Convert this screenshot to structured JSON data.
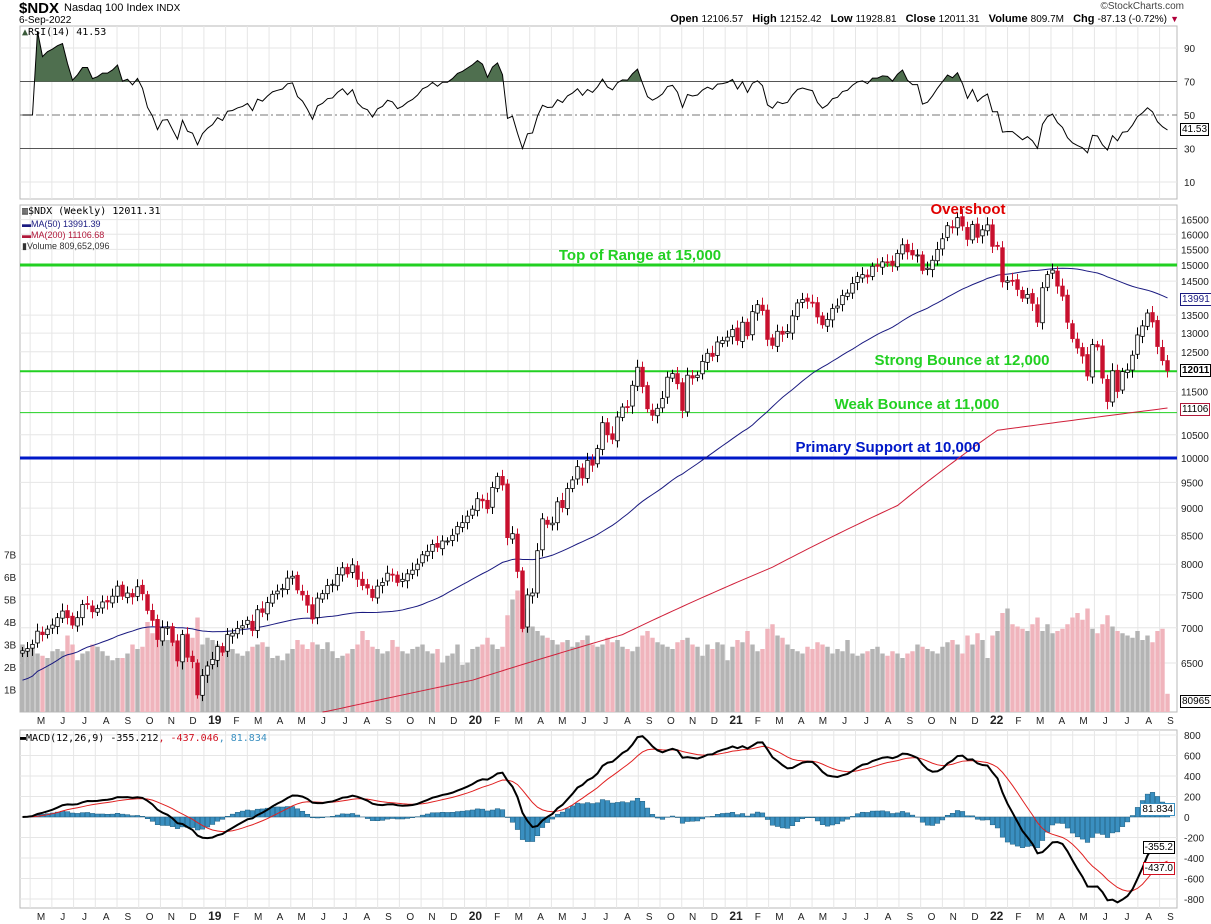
{
  "header": {
    "symbol": "$NDX",
    "name": "Nasdaq 100 Index",
    "exchange": "INDX",
    "date": "6-Sep-2022",
    "copyright": "©StockCharts.com",
    "stats": {
      "open_label": "Open",
      "open": "12106.57",
      "high_label": "High",
      "high": "12152.42",
      "low_label": "Low",
      "low": "11928.81",
      "close_label": "Close",
      "close": "12011.31",
      "volume_label": "Volume",
      "volume": "809.7M",
      "chg_label": "Chg",
      "chg": "-87.13 (-0.72%)"
    }
  },
  "legends": {
    "rsi": "RSI(14) 41.53",
    "price": "$NDX (Weekly) 12011.31",
    "ma50": "MA(50) 13991.39",
    "ma200": "MA(200) 11106.68",
    "volume": "Volume 809,652,096",
    "macd_main": "MACD(12,26,9) -355.212",
    "macd_signal": ", -437.046",
    "macd_hist": ", 81.834"
  },
  "value_tags": {
    "rsi": "41.53",
    "ma50": "13991",
    "close": "12011",
    "ma200": "11106",
    "volume": "80965",
    "macd_hist": "81.834",
    "macd": "-355.2",
    "macd_signal": "-437.0"
  },
  "annotations": [
    {
      "text": "Overshoot",
      "color": "#e00000"
    },
    {
      "text": "Top of Range at 15,000",
      "color": "#22d022",
      "level": 15000
    },
    {
      "text": "Strong Bounce at 12,000",
      "color": "#22d022",
      "level": 12000
    },
    {
      "text": "Weak Bounce at 11,000",
      "color": "#22d022",
      "level": 11000
    },
    {
      "text": "Primary Support at 10,000",
      "color": "#0018c8",
      "level": 10000
    }
  ],
  "colors": {
    "up_candle": "#ffffff",
    "down_candle": "#c8102e",
    "ma50": "#1a1a80",
    "ma200": "#d0203a",
    "volume_up": "#b4b4b4",
    "volume_down": "#f0b4bc",
    "rsi_overbought_fill": "#4f6f4f",
    "macd": "#000000",
    "macd_signal": "#e02020",
    "macd_hist": "#3a8fc0"
  },
  "chart_data": {
    "type": "candlestick",
    "frequency": "weekly",
    "price_scale": "log",
    "price_ticks": [
      16500,
      16000,
      15500,
      15000,
      14500,
      13500,
      13000,
      12500,
      11500,
      10500,
      10000,
      9500,
      9000,
      8500,
      8000,
      7500,
      7000,
      6500
    ],
    "volume_ticks": [
      "1B",
      "2B",
      "3B",
      "4B",
      "5B",
      "6B",
      "7B"
    ],
    "rsi_ticks": [
      90,
      70,
      50,
      30,
      10
    ],
    "macd_ticks": [
      800,
      600,
      400,
      200,
      0,
      -200,
      -400,
      -600,
      -800
    ],
    "month_labels": [
      "M",
      "J",
      "J",
      "A",
      "S",
      "O",
      "N",
      "D",
      "19",
      "F",
      "M",
      "A",
      "M",
      "J",
      "J",
      "A",
      "S",
      "O",
      "N",
      "D",
      "20",
      "F",
      "M",
      "A",
      "M",
      "J",
      "J",
      "A",
      "S",
      "O",
      "N",
      "D",
      "21",
      "F",
      "M",
      "A",
      "M",
      "J",
      "J",
      "A",
      "S",
      "O",
      "N",
      "D",
      "22",
      "F",
      "M",
      "A",
      "M",
      "J",
      "J",
      "A",
      "S"
    ],
    "close": [
      6670,
      6700,
      6760,
      6950,
      6900,
      6980,
      7040,
      7150,
      7250,
      7150,
      7040,
      7150,
      7350,
      7350,
      7240,
      7290,
      7390,
      7390,
      7480,
      7640,
      7480,
      7530,
      7470,
      7630,
      7520,
      7260,
      7110,
      6830,
      7000,
      7010,
      6790,
      6530,
      6900,
      6580,
      6520,
      6080,
      6330,
      6460,
      6550,
      6730,
      6650,
      6900,
      6920,
      6990,
      7030,
      7110,
      6960,
      7270,
      7230,
      7380,
      7510,
      7560,
      7600,
      7770,
      7800,
      7580,
      7500,
      7340,
      7130,
      7450,
      7520,
      7650,
      7670,
      7830,
      7940,
      7840,
      7990,
      7750,
      7650,
      7610,
      7460,
      7640,
      7700,
      7850,
      7820,
      7700,
      7750,
      7840,
      7900,
      8000,
      8160,
      8220,
      8340,
      8290,
      8400,
      8400,
      8500,
      8660,
      8730,
      8850,
      8980,
      9180,
      9140,
      8990,
      9400,
      9620,
      9450,
      8460,
      8530,
      7880,
      6990,
      7500,
      7530,
      8230,
      8800,
      8700,
      8720,
      9120,
      9010,
      9380,
      9550,
      9820,
      9590,
      9950,
      9850,
      10200,
      10770,
      10500,
      10400,
      10900,
      11130,
      11120,
      11650,
      12100,
      11620,
      11090,
      10940,
      11100,
      11330,
      11850,
      11940,
      11690,
      11050,
      11900,
      11830,
      11900,
      12250,
      12460,
      12380,
      12760,
      12800,
      12890,
      13100,
      12800,
      13300,
      12930,
      13600,
      13800,
      13630,
      12830,
      12670,
      13050,
      12970,
      13040,
      13480,
      13850,
      13950,
      13900,
      13860,
      13450,
      13230,
      13380,
      13690,
      13760,
      14070,
      14140,
      14430,
      14640,
      14700,
      14630,
      14960,
      14960,
      15100,
      15090,
      14990,
      15370,
      15650,
      15420,
      15320,
      15320,
      14830,
      14900,
      15150,
      15500,
      15850,
      16290,
      16220,
      16570,
      16280,
      15830,
      16330,
      15900,
      16150,
      16320,
      15600,
      15600,
      14480,
      14510,
      14500,
      14250,
      13990,
      14100,
      13840,
      13300,
      14300,
      14700,
      14840,
      14350,
      14050,
      13300,
      12850,
      12600,
      12390,
      11880,
      12690,
      12630,
      11830,
      11260,
      12010,
      11500,
      11990,
      12030,
      12410,
      12950,
      13200,
      13560,
      13310,
      12640,
      12270,
      12011.31
    ],
    "volume_billions": [
      3.0,
      2.8,
      2.9,
      2.6,
      2.5,
      2.4,
      2.7,
      2.8,
      2.7,
      3.4,
      3.0,
      2.3,
      2.6,
      2.7,
      3.0,
      2.9,
      2.7,
      2.5,
      2.3,
      2.4,
      2.4,
      2.6,
      3.0,
      2.8,
      2.9,
      4.0,
      3.5,
      4.1,
      3.6,
      3.2,
      3.1,
      2.9,
      3.4,
      3.5,
      3.3,
      4.2,
      3.0,
      3.3,
      3.2,
      3.0,
      2.9,
      3.3,
      2.8,
      2.6,
      2.5,
      2.7,
      2.9,
      3.0,
      3.1,
      2.9,
      2.4,
      2.5,
      2.3,
      2.6,
      2.8,
      3.2,
      3.0,
      2.8,
      3.1,
      3.0,
      2.8,
      3.1,
      2.7,
      2.4,
      2.5,
      2.6,
      2.8,
      3.0,
      3.6,
      3.2,
      2.9,
      2.8,
      2.6,
      2.7,
      3.2,
      2.9,
      2.7,
      2.6,
      2.8,
      2.9,
      3.0,
      2.7,
      2.6,
      2.8,
      2.2,
      2.5,
      2.6,
      3.0,
      2.1,
      2.2,
      2.8,
      2.9,
      3.0,
      3.3,
      3.0,
      2.8,
      2.9,
      4.3,
      5.0,
      5.4,
      5.2,
      4.6,
      3.8,
      3.6,
      3.4,
      3.3,
      3.2,
      3.0,
      3.1,
      3.2,
      2.9,
      3.1,
      3.2,
      3.4,
      3.0,
      2.9,
      3.0,
      3.3,
      3.1,
      3.2,
      2.9,
      2.8,
      2.7,
      2.9,
      3.4,
      3.6,
      3.3,
      3.1,
      3.0,
      2.9,
      2.8,
      3.1,
      3.2,
      3.3,
      3.0,
      2.9,
      2.5,
      3.0,
      2.8,
      3.1,
      3.0,
      2.3,
      2.9,
      3.2,
      3.1,
      3.6,
      3.0,
      2.7,
      2.8,
      3.7,
      3.9,
      3.4,
      3.3,
      3.0,
      2.8,
      2.7,
      2.6,
      2.9,
      2.8,
      3.1,
      3.0,
      2.9,
      2.6,
      2.8,
      2.7,
      3.2,
      2.6,
      2.5,
      2.6,
      2.7,
      2.8,
      2.9,
      2.6,
      2.5,
      2.7,
      2.6,
      2.4,
      2.6,
      2.7,
      3.0,
      2.9,
      2.8,
      2.7,
      2.6,
      2.9,
      3.1,
      3.2,
      3.0,
      2.6,
      3.4,
      3.0,
      3.5,
      3.2,
      2.4,
      3.4,
      3.6,
      4.4,
      4.6,
      3.9,
      3.8,
      3.7,
      3.6,
      3.9,
      4.2,
      3.6,
      3.9,
      3.5,
      3.6,
      3.7,
      3.9,
      4.2,
      4.4,
      4.1,
      4.6,
      3.7,
      3.5,
      3.9,
      4.3,
      3.8,
      3.6,
      3.5,
      3.4,
      3.3,
      3.6,
      3.2,
      3.4,
      3.1,
      3.6,
      3.7,
      0.81
    ],
    "ma200_anchors": {
      "week": [
        60,
        90,
        120,
        150,
        175,
        195,
        229
      ],
      "value": [
        5860,
        6270,
        6900,
        7950,
        9050,
        10600,
        11106.68
      ]
    },
    "rsi_period": 14,
    "macd_params": [
      12,
      26,
      9
    ]
  }
}
